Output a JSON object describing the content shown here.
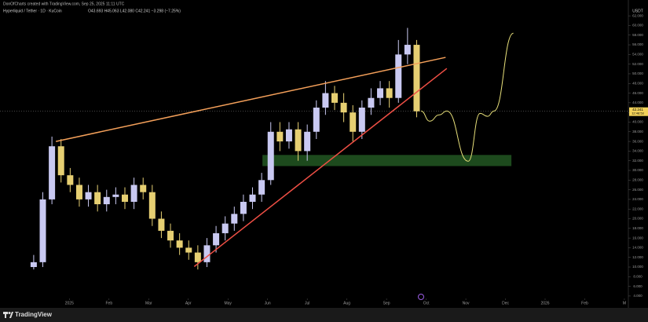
{
  "chart_data": {
    "type": "candlestick",
    "credit": "DonOfCharts created with TradingView.com, Sep 25, 2025 11:11 UTC",
    "title": "Hyperliquid / Tether · 1D · KuCoin",
    "ohlc": "O43.693 H45.063 L42.080 C42.241 −3.298 (−7.25%)",
    "currency": "USDT",
    "brand": "TradingView",
    "countdown": "12:48:53",
    "up_color": "#c9c9f2",
    "down_color": "#e6cf72",
    "x": [
      -0.9,
      -0.67,
      -0.44,
      -0.21,
      0.02,
      0.25,
      0.48,
      0.71,
      0.94,
      1.17,
      1.4,
      1.63,
      1.86,
      2.09,
      2.32,
      2.55,
      2.78,
      3.01,
      3.24,
      3.47,
      3.7,
      3.93,
      4.16,
      4.39,
      4.62,
      4.85,
      5.08,
      5.31,
      5.54,
      5.77,
      6,
      6.23,
      6.46,
      6.69,
      6.92,
      7.15,
      7.38,
      7.61,
      7.84,
      8.07,
      8.3,
      8.53,
      8.76
    ],
    "open": [
      10,
      11,
      24,
      35,
      29,
      27,
      24,
      25.5,
      23,
      24.5,
      25,
      23.5,
      27,
      25.5,
      20,
      17.5,
      15.5,
      14,
      13,
      11,
      14.5,
      17,
      19,
      21,
      23.5,
      25,
      28,
      38,
      36,
      38.5,
      34,
      38,
      43,
      46,
      44,
      42,
      38,
      43,
      45,
      47,
      45,
      54,
      56
    ],
    "high": [
      12.5,
      25.5,
      37,
      36.5,
      30.5,
      28.5,
      27,
      27,
      26,
      26.5,
      26.5,
      28.5,
      28.5,
      27,
      21.5,
      19,
      17,
      15.5,
      14.5,
      16,
      18.5,
      20.5,
      22.5,
      25,
      26.5,
      29.5,
      40,
      40,
      40,
      40,
      39.5,
      44.5,
      48.5,
      47.5,
      46,
      43.5,
      44.5,
      47,
      48.5,
      48.5,
      57,
      59.5,
      57
    ],
    "low": [
      9.5,
      10,
      23,
      27.5,
      25.5,
      22.5,
      22.5,
      21.5,
      21.5,
      23,
      22,
      22,
      24,
      18.5,
      16,
      14,
      12.5,
      11.5,
      9.5,
      10,
      13,
      15.5,
      17.5,
      19.5,
      22,
      23.5,
      27,
      34,
      34.5,
      32,
      32,
      36.5,
      41.5,
      42.5,
      40,
      36,
      36.5,
      41.5,
      43.5,
      43,
      44,
      52,
      41
    ],
    "close": [
      11,
      24,
      35,
      29,
      27,
      24,
      25.5,
      23,
      24.5,
      25,
      23.5,
      27,
      25.5,
      20,
      17.5,
      15.5,
      14,
      13,
      11,
      14.5,
      17,
      19,
      21,
      23.5,
      25,
      28,
      38,
      36,
      38.5,
      34,
      38,
      43,
      46,
      44,
      42,
      38,
      43,
      45,
      47,
      45,
      54,
      56,
      42.241
    ],
    "last_price": 42.241,
    "last_price_color": "#f3d25a",
    "xlim": [
      -1.75,
      14.1
    ],
    "xticks": [
      {
        "value": 0,
        "label": "2025"
      },
      {
        "value": 1,
        "label": "Feb"
      },
      {
        "value": 2,
        "label": "Mar"
      },
      {
        "value": 3,
        "label": "Apr"
      },
      {
        "value": 4,
        "label": "May"
      },
      {
        "value": 5,
        "label": "Jun"
      },
      {
        "value": 6,
        "label": "Jul"
      },
      {
        "value": 7,
        "label": "Aug"
      },
      {
        "value": 8,
        "label": "Sep"
      },
      {
        "value": 9,
        "label": "Oct"
      },
      {
        "value": 10,
        "label": "Nov"
      },
      {
        "value": 11,
        "label": "Dec"
      },
      {
        "value": 12,
        "label": "2026"
      },
      {
        "value": 13,
        "label": "Feb"
      },
      {
        "value": 14,
        "label": "M"
      }
    ],
    "ylim": [
      3.5,
      63
    ],
    "yticks": [
      {
        "value": 62,
        "label": "62.000"
      },
      {
        "value": 60,
        "label": "60.000"
      },
      {
        "value": 58,
        "label": "58.000"
      },
      {
        "value": 56,
        "label": "56.000"
      },
      {
        "value": 54,
        "label": "54.000"
      },
      {
        "value": 52,
        "label": "52.000"
      },
      {
        "value": 50,
        "label": "50.000"
      },
      {
        "value": 48,
        "label": "48.000"
      },
      {
        "value": 46,
        "label": "46.000"
      },
      {
        "value": 44,
        "label": "44.000"
      },
      {
        "value": 42,
        "label": "42.000"
      },
      {
        "value": 40,
        "label": "40.000"
      },
      {
        "value": 38,
        "label": "38.000"
      },
      {
        "value": 36,
        "label": "36.000"
      },
      {
        "value": 34,
        "label": "34.000"
      },
      {
        "value": 32,
        "label": "32.000"
      },
      {
        "value": 30,
        "label": "30.000"
      },
      {
        "value": 28,
        "label": "28.000"
      },
      {
        "value": 26,
        "label": "26.000"
      },
      {
        "value": 24,
        "label": "24.000"
      },
      {
        "value": 22,
        "label": "22.000"
      },
      {
        "value": 20,
        "label": "20.000"
      },
      {
        "value": 18,
        "label": "18.000"
      },
      {
        "value": 16,
        "label": "16.000"
      },
      {
        "value": 14,
        "label": "14.000"
      },
      {
        "value": 12,
        "label": "12.000"
      },
      {
        "value": 10,
        "label": "10.000"
      },
      {
        "value": 8,
        "label": "8.000"
      },
      {
        "value": 6,
        "label": "6.000"
      },
      {
        "value": 4,
        "label": "4.000"
      }
    ],
    "zone": {
      "color": "#1d4a1d",
      "x": [
        4.87,
        11.15
      ],
      "y": [
        30.9,
        33.2
      ]
    },
    "trendlines": [
      {
        "color": "#f4a05a",
        "x": [
          -0.34,
          9.49
        ],
        "y": [
          36,
          53.4
        ]
      },
      {
        "color": "#ef4f45",
        "x": [
          3.15,
          9.52
        ],
        "y": [
          10.1,
          51.1
        ]
      }
    ],
    "projection": {
      "color": "#e8e07a",
      "x": [
        8.87,
        9.09,
        9.33,
        9.52,
        10.06,
        10.36,
        10.55,
        10.71,
        11.2
      ],
      "y": [
        42.3,
        40.2,
        41.5,
        42.3,
        31.9,
        41.8,
        41.2,
        42.3,
        58.4
      ]
    }
  }
}
